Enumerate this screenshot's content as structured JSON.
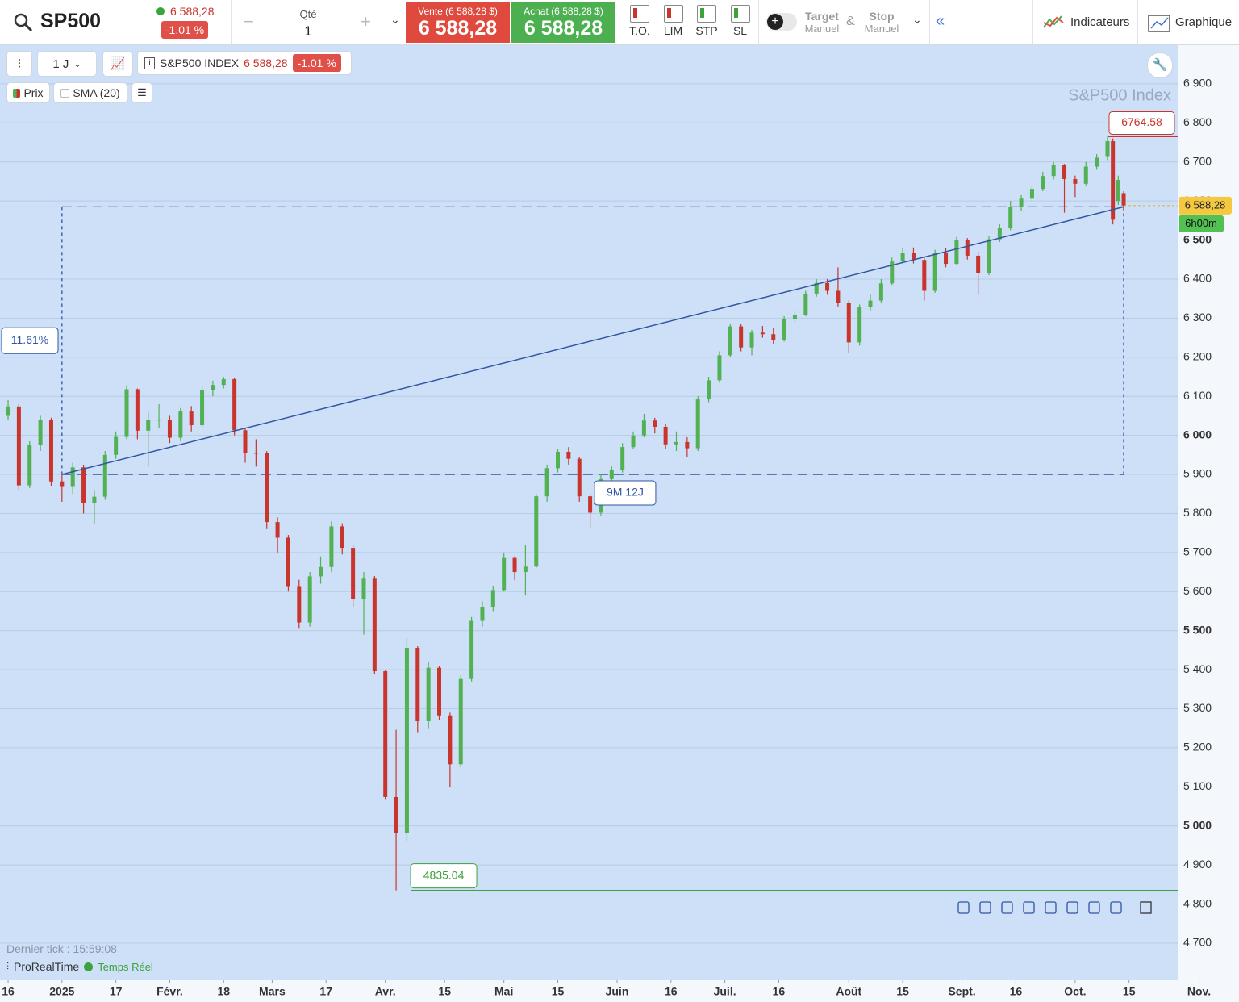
{
  "toolbar": {
    "symbol": "SP500",
    "price": "6 588,28",
    "change": "-1,01 %",
    "qty_label": "Qté",
    "qty": "1",
    "sell_label": "Vente (6 588,28 $)",
    "sell_price": "6 588,28",
    "buy_label": "Achat (6 588,28 $)",
    "buy_price": "6 588,28",
    "order_buttons": [
      "T.O.",
      "LIM",
      "STP",
      "SL"
    ],
    "target": [
      "Target",
      "Manuel"
    ],
    "amp": "&",
    "stop": [
      "Stop",
      "Manuel"
    ],
    "indicators": "Indicateurs",
    "chart": "Graphique"
  },
  "chart_header": {
    "period": "1 J",
    "instrument": "S&P500 INDEX",
    "price": "6 588,28",
    "change": "-1.01 %",
    "legend": [
      "Prix",
      "SMA (20)"
    ]
  },
  "footer": {
    "last_tick": "Dernier tick : 15:59:08",
    "brand": "ProRealTime",
    "mode": "Temps Réel"
  },
  "chart_data": {
    "type": "candlestick",
    "watermark": "S&P500 Index",
    "up_color": "#52b152",
    "down_color": "#c9342d",
    "grid": true,
    "x": [
      0,
      2,
      4,
      6,
      8,
      10,
      12,
      14,
      16,
      18,
      20,
      22,
      24,
      26,
      28,
      30,
      32,
      34,
      36,
      38,
      40,
      42,
      44,
      46,
      48,
      50,
      52,
      54,
      56,
      58,
      60,
      62,
      64,
      66,
      68,
      70,
      72,
      74,
      76,
      78,
      80,
      82,
      84,
      86,
      88,
      90,
      92,
      94,
      96,
      98,
      100,
      102,
      104,
      106,
      108,
      110,
      112,
      114,
      116,
      118,
      120,
      122,
      124,
      126,
      128,
      130,
      132,
      134,
      136,
      138,
      140,
      142,
      144,
      146,
      148,
      150,
      152,
      154,
      156,
      158,
      160,
      162,
      164,
      166,
      168,
      170,
      172,
      174,
      176,
      178,
      180,
      182,
      184,
      186,
      188,
      190,
      192,
      194,
      196,
      198,
      200,
      202,
      204,
      205,
      206,
      207
    ],
    "open": [
      6050,
      6074,
      5872,
      5975,
      6040,
      5882,
      5868,
      5918,
      5827,
      5843,
      5950,
      5996,
      6118,
      6012,
      6039,
      6040,
      5994,
      6061,
      6026,
      6115,
      6129,
      6144,
      6013,
      5955,
      5954,
      5778,
      5738,
      5614,
      5521,
      5639,
      5663,
      5767,
      5712,
      5580,
      5633,
      5396,
      5074,
      4982,
      5456,
      5268,
      5405,
      5283,
      5158,
      5376,
      5525,
      5560,
      5604,
      5686,
      5650,
      5664,
      5844,
      5916,
      5958,
      5940,
      5844,
      5802,
      5888,
      5912,
      5970,
      6000,
      6038,
      6022,
      5977,
      5983,
      5967,
      6092,
      6141,
      6205,
      6279,
      6225,
      6263,
      6259,
      6244,
      6297,
      6309,
      6363,
      6390,
      6370,
      6339,
      6238,
      6329,
      6345,
      6389,
      6445,
      6468,
      6449,
      6370,
      6466,
      6439,
      6501,
      6460,
      6415,
      6502,
      6532,
      6584,
      6606,
      6631,
      6664,
      6693,
      6656,
      6644,
      6688,
      6715,
      6753,
      6600,
      6620
    ],
    "high": [
      6090,
      6080,
      5985,
      6050,
      6045,
      5900,
      5930,
      5925,
      5860,
      5960,
      6010,
      6128,
      6120,
      6060,
      6080,
      6050,
      6070,
      6075,
      6125,
      6140,
      6150,
      6148,
      6020,
      5990,
      5960,
      5790,
      5745,
      5630,
      5650,
      5690,
      5780,
      5775,
      5720,
      5650,
      5640,
      5400,
      5246,
      5481,
      5460,
      5420,
      5410,
      5290,
      5385,
      5535,
      5575,
      5615,
      5700,
      5690,
      5720,
      5850,
      5925,
      5965,
      5970,
      5945,
      5850,
      5900,
      5920,
      5980,
      6010,
      6055,
      6045,
      6030,
      6010,
      5995,
      6100,
      6150,
      6215,
      6285,
      6285,
      6270,
      6280,
      6275,
      6305,
      6320,
      6370,
      6400,
      6400,
      6430,
      6345,
      6335,
      6360,
      6400,
      6455,
      6480,
      6481,
      6455,
      6475,
      6480,
      6508,
      6505,
      6470,
      6510,
      6540,
      6600,
      6615,
      6640,
      6675,
      6700,
      6695,
      6665,
      6700,
      6720,
      6764.58,
      6760,
      6665,
      6625
    ],
    "low": [
      6040,
      5860,
      5865,
      5960,
      5870,
      5830,
      5850,
      5800,
      5775,
      5835,
      5940,
      5990,
      5990,
      5920,
      6020,
      5980,
      5985,
      6010,
      6020,
      6100,
      6120,
      6000,
      5930,
      5920,
      5760,
      5700,
      5600,
      5505,
      5510,
      5620,
      5650,
      5695,
      5560,
      5490,
      5390,
      5069,
      4835.04,
      4960,
      5240,
      5250,
      5270,
      5100,
      5150,
      5370,
      5510,
      5550,
      5600,
      5630,
      5590,
      5660,
      5830,
      5905,
      5925,
      5830,
      5765,
      5795,
      5880,
      5905,
      5965,
      5995,
      6005,
      5965,
      5960,
      5945,
      5960,
      6085,
      6135,
      6200,
      6215,
      6205,
      6250,
      6235,
      6240,
      6290,
      6305,
      6355,
      6360,
      6330,
      6210,
      6230,
      6320,
      6340,
      6385,
      6440,
      6440,
      6345,
      6365,
      6430,
      6435,
      6450,
      6360,
      6410,
      6495,
      6525,
      6575,
      6600,
      6625,
      6655,
      6570,
      6610,
      6640,
      6680,
      6705,
      6540,
      6590,
      6575
    ],
    "close": [
      6074,
      5872,
      5975,
      6040,
      5882,
      5868,
      5918,
      5827,
      5843,
      5950,
      5996,
      6118,
      6012,
      6039,
      6040,
      5994,
      6061,
      6026,
      6115,
      6129,
      6144,
      6013,
      5955,
      5954,
      5778,
      5738,
      5614,
      5521,
      5639,
      5663,
      5767,
      5712,
      5580,
      5633,
      5396,
      5074,
      4982,
      5456,
      5268,
      5405,
      5283,
      5158,
      5376,
      5525,
      5560,
      5604,
      5686,
      5650,
      5664,
      5844,
      5916,
      5958,
      5940,
      5844,
      5802,
      5888,
      5912,
      5970,
      6000,
      6038,
      6022,
      5977,
      5983,
      5967,
      6092,
      6141,
      6205,
      6279,
      6225,
      6263,
      6259,
      6244,
      6297,
      6309,
      6363,
      6390,
      6370,
      6339,
      6238,
      6329,
      6345,
      6389,
      6445,
      6468,
      6449,
      6370,
      6466,
      6439,
      6501,
      6460,
      6415,
      6502,
      6532,
      6584,
      6606,
      6631,
      6664,
      6693,
      6656,
      6644,
      6688,
      6711,
      6753,
      6552,
      6654,
      6588.28
    ],
    "xlim": [
      -1.5,
      228.4
    ],
    "ylim": [
      4605,
      7001
    ],
    "xticks": [
      {
        "value": 0,
        "label": "16"
      },
      {
        "value": 10,
        "label": "2025"
      },
      {
        "value": 20,
        "label": "17"
      },
      {
        "value": 30,
        "label": "Févr."
      },
      {
        "value": 40,
        "label": "18"
      },
      {
        "value": 49,
        "label": "Mars"
      },
      {
        "value": 59,
        "label": "17"
      },
      {
        "value": 70,
        "label": "Avr."
      },
      {
        "value": 81,
        "label": "15"
      },
      {
        "value": 92,
        "label": "Mai"
      },
      {
        "value": 102,
        "label": "15"
      },
      {
        "value": 113,
        "label": "Juin"
      },
      {
        "value": 123,
        "label": "16"
      },
      {
        "value": 133,
        "label": "Juil."
      },
      {
        "value": 143,
        "label": "16"
      },
      {
        "value": 156,
        "label": "Août"
      },
      {
        "value": 166,
        "label": "15"
      },
      {
        "value": 177,
        "label": "Sept."
      },
      {
        "value": 187,
        "label": "16"
      },
      {
        "value": 198,
        "label": "Oct."
      },
      {
        "value": 208,
        "label": "15"
      },
      {
        "value": 221,
        "label": "Nov."
      }
    ],
    "yticks": [
      {
        "value": 6900,
        "label": "6 900"
      },
      {
        "value": 6800,
        "label": "6 800"
      },
      {
        "value": 6700,
        "label": "6 700"
      },
      {
        "value": 6600,
        "label": "6 600"
      },
      {
        "value": 6500,
        "label": "6 500"
      },
      {
        "value": 6400,
        "label": "6 400"
      },
      {
        "value": 6300,
        "label": "6 300"
      },
      {
        "value": 6200,
        "label": "6 200"
      },
      {
        "value": 6100,
        "label": "6 100"
      },
      {
        "value": 6000,
        "label": "6 000"
      },
      {
        "value": 5900,
        "label": "5 900"
      },
      {
        "value": 5800,
        "label": "5 800"
      },
      {
        "value": 5700,
        "label": "5 700"
      },
      {
        "value": 5600,
        "label": "5 600"
      },
      {
        "value": 5500,
        "label": "5 500"
      },
      {
        "value": 5400,
        "label": "5 400"
      },
      {
        "value": 5300,
        "label": "5 300"
      },
      {
        "value": 5200,
        "label": "5 200"
      },
      {
        "value": 5100,
        "label": "5 100"
      },
      {
        "value": 5000,
        "label": "5 000"
      },
      {
        "value": 4900,
        "label": "4 900"
      },
      {
        "value": 4800,
        "label": "4 800"
      },
      {
        "value": 4700,
        "label": "4 700"
      }
    ],
    "max_line": 6764.58,
    "min_line": 4835.04,
    "last_price": {
      "value": 6588.28,
      "label": "6 588,28"
    },
    "countdown": "6h00m",
    "measure": {
      "x": [
        10,
        207
      ],
      "y": [
        5900,
        6585
      ],
      "change_label": "11.61%",
      "duration_label": "9M 12J"
    }
  }
}
